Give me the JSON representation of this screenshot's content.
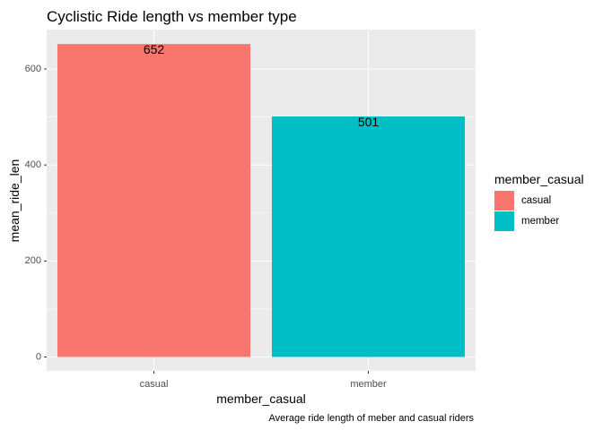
{
  "chart_data": {
    "type": "bar",
    "title": "Cyclistic Ride length vs member type",
    "xlabel": "member_casual",
    "ylabel": "mean_ride_len",
    "caption": "Average ride length of meber and casual riders",
    "categories": [
      "casual",
      "member"
    ],
    "values": [
      652,
      501
    ],
    "data_labels": [
      "652",
      "501"
    ],
    "colors": [
      "#F8766D",
      "#00BFC4"
    ],
    "ylim": [
      0,
      690
    ],
    "yticks": [
      0,
      200,
      400,
      600
    ],
    "ytick_labels": [
      "0",
      "200",
      "400",
      "600"
    ],
    "grid": true,
    "legend": {
      "title": "member_casual",
      "placement": "right",
      "entries": [
        "casual",
        "member"
      ]
    }
  }
}
